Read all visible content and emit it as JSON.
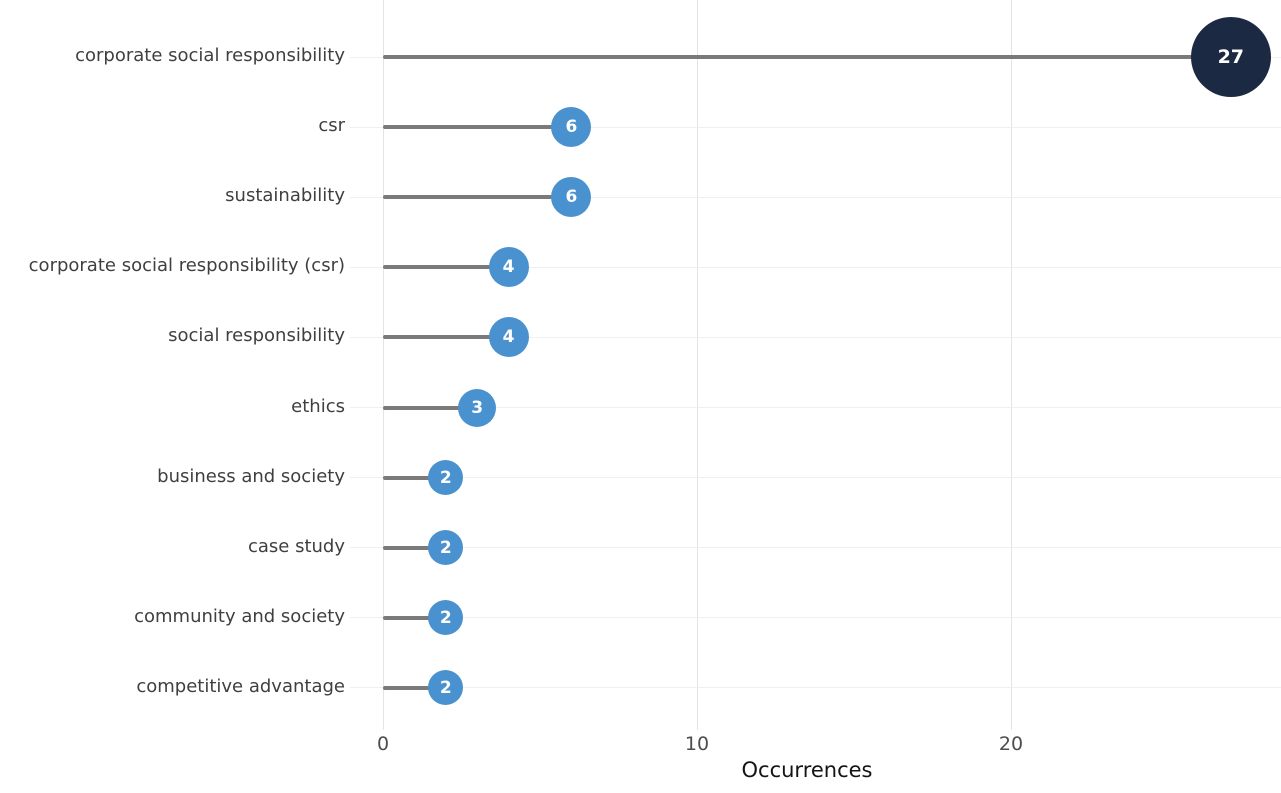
{
  "chart_data": {
    "type": "bar",
    "variant": "lollipop",
    "orientation": "horizontal",
    "title": "",
    "xlabel": "Occurrences",
    "ylabel": "",
    "xticks": [
      0,
      10,
      20
    ],
    "xlim": [
      0,
      28.6
    ],
    "grid": true,
    "legend": false,
    "categories": [
      "corporate social responsibility",
      "csr",
      "sustainability",
      "corporate social responsibility (csr)",
      "social responsibility",
      "ethics",
      "business and society",
      "case study",
      "community and society",
      "competitive advantage"
    ],
    "values": [
      27,
      6,
      6,
      4,
      4,
      3,
      2,
      2,
      2,
      2
    ],
    "points": [
      {
        "label": "corporate social responsibility",
        "value": 27,
        "color": "#1b2a42"
      },
      {
        "label": "csr",
        "value": 6,
        "color": "#4a92cf"
      },
      {
        "label": "sustainability",
        "value": 6,
        "color": "#4a92cf"
      },
      {
        "label": "corporate social responsibility (csr)",
        "value": 4,
        "color": "#4a92cf"
      },
      {
        "label": "social responsibility",
        "value": 4,
        "color": "#4a92cf"
      },
      {
        "label": "ethics",
        "value": 3,
        "color": "#4a92cf"
      },
      {
        "label": "business and society",
        "value": 2,
        "color": "#4a92cf"
      },
      {
        "label": "case study",
        "value": 2,
        "color": "#4a92cf"
      },
      {
        "label": "community and society",
        "value": 2,
        "color": "#4a92cf"
      },
      {
        "label": "competitive advantage",
        "value": 2,
        "color": "#4a92cf"
      }
    ],
    "colors": {
      "point": "#4a92cf",
      "max_point": "#1b2a42",
      "stem": "#7a7a7a",
      "category_text": "#3f3f3f",
      "tick_text": "#4d4d4d",
      "value_text": "#ffffff",
      "gridline": "#e4e4e4"
    }
  }
}
